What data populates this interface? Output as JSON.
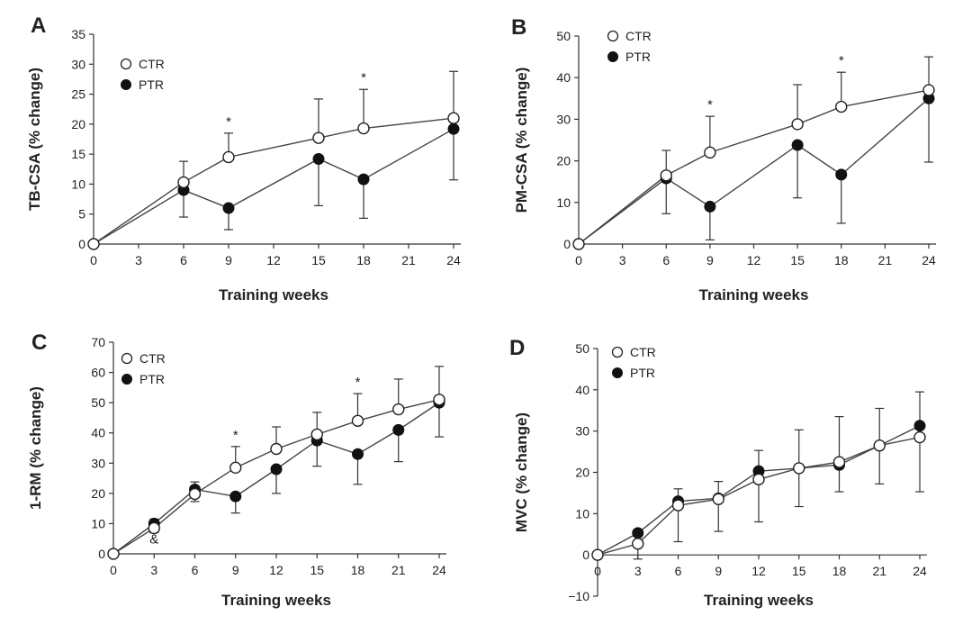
{
  "chart_data": [
    {
      "panel": "A",
      "type": "line",
      "xlabel": "Training weeks",
      "ylabel": "TB-CSA (% change)",
      "xlim": [
        0,
        24
      ],
      "ylim": [
        0,
        35
      ],
      "xticks": [
        0,
        3,
        6,
        9,
        12,
        15,
        18,
        21,
        24
      ],
      "yticks": [
        0,
        5,
        10,
        15,
        20,
        25,
        30,
        35
      ],
      "legend_position": "top-left",
      "series": [
        {
          "name": "CTR",
          "marker": "open",
          "x": [
            0,
            6,
            9,
            15,
            18,
            24
          ],
          "values": [
            0,
            10.3,
            14.5,
            17.7,
            19.3,
            21.0
          ],
          "err": [
            0,
            3.5,
            4.0,
            6.5,
            6.5,
            7.8
          ]
        },
        {
          "name": "PTR",
          "marker": "filled",
          "x": [
            0,
            6,
            9,
            15,
            18,
            24
          ],
          "values": [
            0,
            9.0,
            6.0,
            14.2,
            10.8,
            19.2
          ],
          "err": [
            0,
            4.5,
            3.6,
            7.8,
            6.5,
            8.5
          ]
        }
      ],
      "annotations": [
        {
          "text": "*",
          "x": 9
        },
        {
          "text": "*",
          "x": 18
        }
      ]
    },
    {
      "panel": "B",
      "type": "line",
      "xlabel": "Training weeks",
      "ylabel": "PM-CSA (% change)",
      "xlim": [
        0,
        24
      ],
      "ylim": [
        0,
        50
      ],
      "xticks": [
        0,
        3,
        6,
        9,
        12,
        15,
        18,
        21,
        24
      ],
      "yticks": [
        0,
        10,
        20,
        30,
        40,
        50
      ],
      "legend_position": "top-left",
      "series": [
        {
          "name": "CTR",
          "marker": "open",
          "x": [
            0,
            6,
            9,
            15,
            18,
            24
          ],
          "values": [
            0,
            16.5,
            22.0,
            28.8,
            33.0,
            37.0
          ],
          "err": [
            0,
            6.0,
            8.7,
            9.5,
            8.3,
            8.0
          ]
        },
        {
          "name": "PTR",
          "marker": "filled",
          "x": [
            0,
            6,
            9,
            15,
            18,
            24
          ],
          "values": [
            0,
            15.8,
            9.0,
            23.8,
            16.7,
            35.0
          ],
          "err": [
            0,
            8.5,
            8.0,
            12.7,
            11.7,
            15.3
          ]
        }
      ],
      "annotations": [
        {
          "text": "*",
          "x": 9
        },
        {
          "text": "*",
          "x": 18
        }
      ]
    },
    {
      "panel": "C",
      "type": "line",
      "xlabel": "Training weeks",
      "ylabel": "1-RM (% change)",
      "xlim": [
        0,
        24
      ],
      "ylim": [
        0,
        70
      ],
      "xticks": [
        0,
        3,
        6,
        9,
        12,
        15,
        18,
        21,
        24
      ],
      "yticks": [
        0,
        10,
        20,
        30,
        40,
        50,
        60,
        70
      ],
      "legend_position": "top-left",
      "series": [
        {
          "name": "CTR",
          "marker": "open",
          "x": [
            0,
            3,
            6,
            9,
            12,
            15,
            18,
            21,
            24
          ],
          "values": [
            0,
            8.5,
            19.8,
            28.5,
            34.7,
            39.5,
            44.0,
            47.8,
            51.0
          ],
          "err": [
            0,
            3.0,
            4.0,
            7.0,
            7.3,
            7.3,
            9.0,
            10.0,
            11.0
          ]
        },
        {
          "name": "PTR",
          "marker": "filled",
          "x": [
            0,
            3,
            6,
            9,
            12,
            15,
            18,
            21,
            24
          ],
          "values": [
            0,
            10.0,
            21.3,
            19.0,
            28.0,
            37.5,
            33.0,
            41.0,
            50.0
          ],
          "err": [
            0,
            3.0,
            4.0,
            5.5,
            8.0,
            8.5,
            10.0,
            10.5,
            11.3
          ]
        }
      ],
      "annotations": [
        {
          "text": "*",
          "x": 9
        },
        {
          "text": "*",
          "x": 18
        },
        {
          "text": "&",
          "x": 3
        }
      ]
    },
    {
      "panel": "D",
      "type": "line",
      "xlabel": "Training weeks",
      "ylabel": "MVC (% change)",
      "xlim": [
        0,
        24
      ],
      "ylim": [
        -10,
        50
      ],
      "xticks": [
        0,
        3,
        6,
        9,
        12,
        15,
        18,
        21,
        24
      ],
      "yticks": [
        -10,
        0,
        10,
        20,
        30,
        40,
        50
      ],
      "legend_position": "top-left",
      "series": [
        {
          "name": "CTR",
          "marker": "open",
          "x": [
            0,
            3,
            6,
            9,
            12,
            15,
            18,
            21,
            24
          ],
          "values": [
            0,
            2.7,
            12.0,
            13.5,
            18.3,
            21.0,
            22.5,
            26.5,
            28.5
          ],
          "err": [
            0,
            2.7,
            4.0,
            4.3,
            7.0,
            9.3,
            11.0,
            9.0,
            11.0
          ]
        },
        {
          "name": "PTR",
          "marker": "filled",
          "x": [
            0,
            3,
            6,
            9,
            12,
            15,
            18,
            21,
            24
          ],
          "values": [
            0,
            5.3,
            13.0,
            13.7,
            20.3,
            21.0,
            21.8,
            26.5,
            31.3
          ],
          "err": [
            0,
            6.3,
            9.8,
            8.0,
            12.3,
            9.3,
            6.5,
            9.3,
            16.0
          ]
        }
      ],
      "annotations": []
    }
  ]
}
